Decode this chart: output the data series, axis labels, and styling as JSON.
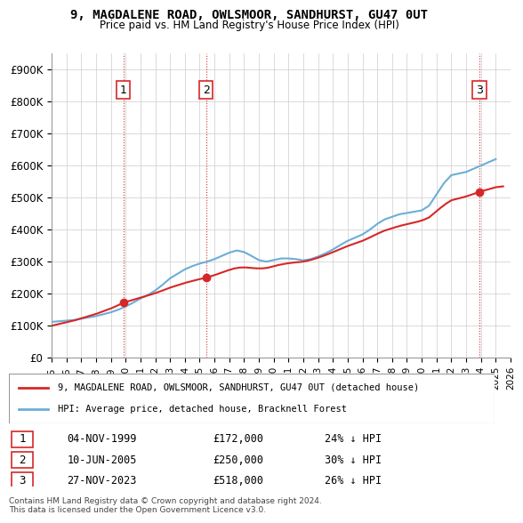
{
  "title": "9, MAGDALENE ROAD, OWLSMOOR, SANDHURST, GU47 0UT",
  "subtitle": "Price paid vs. HM Land Registry's House Price Index (HPI)",
  "ylabel": "",
  "ylim": [
    0,
    950000
  ],
  "yticks": [
    0,
    100000,
    200000,
    300000,
    400000,
    500000,
    600000,
    700000,
    800000,
    900000
  ],
  "ytick_labels": [
    "£0",
    "£100K",
    "£200K",
    "£300K",
    "£400K",
    "£500K",
    "£600K",
    "£700K",
    "£800K",
    "£900K"
  ],
  "hpi_color": "#6baed6",
  "price_color": "#d62728",
  "sale_marker_color": "#d62728",
  "sale_label": "9, MAGDALENE ROAD, OWLSMOOR, SANDHURST, GU47 0UT (detached house)",
  "hpi_label": "HPI: Average price, detached house, Bracknell Forest",
  "sales": [
    {
      "label": "1",
      "date": "04-NOV-1999",
      "price": 172000,
      "x": 1999.84,
      "hpi_pct": "24% ↓ HPI"
    },
    {
      "label": "2",
      "date": "10-JUN-2005",
      "price": 250000,
      "x": 2005.44,
      "hpi_pct": "30% ↓ HPI"
    },
    {
      "label": "3",
      "date": "27-NOV-2023",
      "price": 518000,
      "x": 2023.9,
      "hpi_pct": "26% ↓ HPI"
    }
  ],
  "footer": "Contains HM Land Registry data © Crown copyright and database right 2024.\nThis data is licensed under the Open Government Licence v3.0.",
  "hpi_x": [
    1995,
    1995.5,
    1996,
    1996.5,
    1997,
    1997.5,
    1998,
    1998.5,
    1999,
    1999.5,
    2000,
    2000.5,
    2001,
    2001.5,
    2002,
    2002.5,
    2003,
    2003.5,
    2004,
    2004.5,
    2005,
    2005.5,
    2006,
    2006.5,
    2007,
    2007.5,
    2008,
    2008.5,
    2009,
    2009.5,
    2010,
    2010.5,
    2011,
    2011.5,
    2012,
    2012.5,
    2013,
    2013.5,
    2014,
    2014.5,
    2015,
    2015.5,
    2016,
    2016.5,
    2017,
    2017.5,
    2018,
    2018.5,
    2019,
    2019.5,
    2020,
    2020.5,
    2021,
    2021.5,
    2022,
    2022.5,
    2023,
    2023.5,
    2024,
    2024.5,
    2025
  ],
  "hpi_y": [
    112000,
    114000,
    116000,
    118000,
    122000,
    126000,
    130000,
    136000,
    142000,
    150000,
    160000,
    172000,
    185000,
    196000,
    210000,
    228000,
    248000,
    262000,
    276000,
    286000,
    294000,
    300000,
    308000,
    318000,
    328000,
    335000,
    330000,
    318000,
    305000,
    300000,
    305000,
    310000,
    310000,
    308000,
    304000,
    308000,
    316000,
    326000,
    338000,
    352000,
    365000,
    375000,
    385000,
    400000,
    418000,
    432000,
    440000,
    448000,
    452000,
    456000,
    460000,
    475000,
    510000,
    545000,
    570000,
    575000,
    580000,
    590000,
    600000,
    610000,
    620000
  ],
  "price_x": [
    1995,
    1999.84,
    2005.44,
    2023.9,
    2025
  ],
  "price_y_base": [
    100000,
    172000,
    250000,
    518000,
    530000
  ],
  "vline_dates": [
    1999.84,
    2005.44,
    2023.9
  ],
  "vline_color": "#d62728",
  "grid_color": "#cccccc",
  "bg_color": "#ffffff",
  "xlim": [
    1995,
    2026
  ],
  "xticks": [
    1995,
    1996,
    1997,
    1998,
    1999,
    2000,
    2001,
    2002,
    2003,
    2004,
    2005,
    2006,
    2007,
    2008,
    2009,
    2010,
    2011,
    2012,
    2013,
    2014,
    2015,
    2016,
    2017,
    2018,
    2019,
    2020,
    2021,
    2022,
    2023,
    2024,
    2025,
    2026
  ]
}
